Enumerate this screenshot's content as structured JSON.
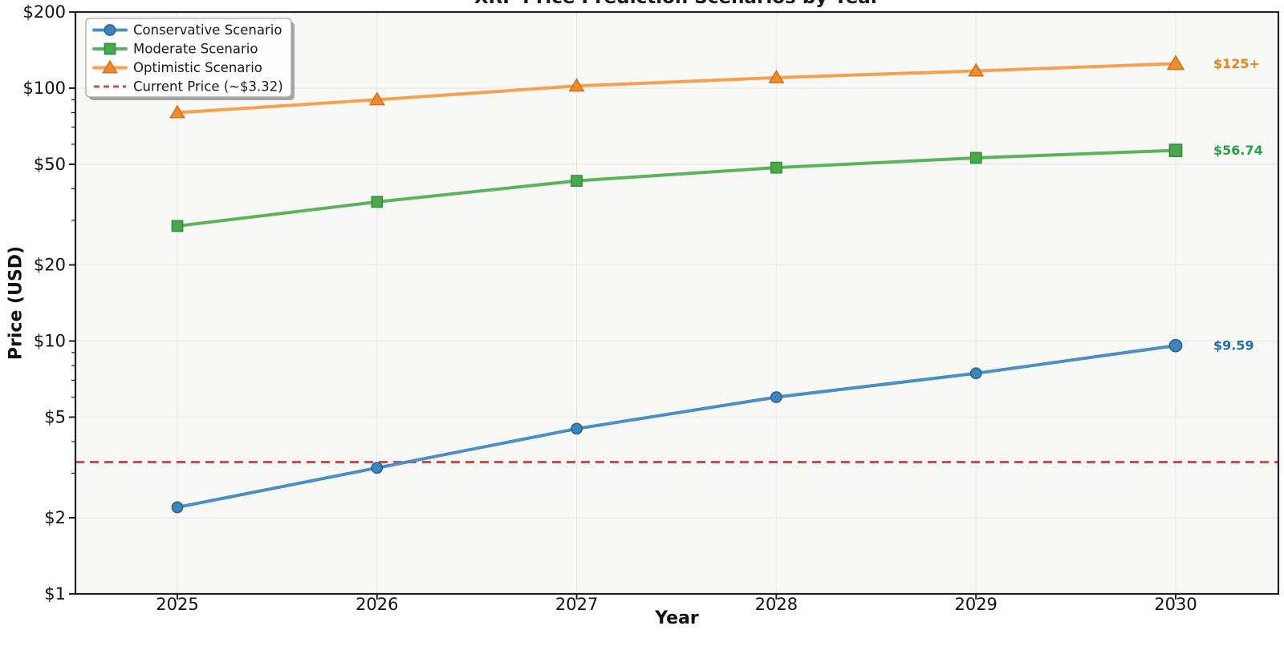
{
  "chart_data": {
    "type": "line",
    "title": "XRP Price Prediction Scenarios by Year",
    "xlabel": "Year",
    "ylabel": "Price (USD)",
    "yscale": "log",
    "ylim": [
      1,
      200
    ],
    "grid": true,
    "legend_position": "upper left",
    "x": [
      2025,
      2026,
      2027,
      2028,
      2029,
      2030
    ],
    "x_labels": [
      "2025",
      "2026",
      "2027",
      "2028",
      "2029",
      "2030"
    ],
    "y_ticks": [
      {
        "v": 1,
        "label": "$1"
      },
      {
        "v": 2,
        "label": "$2"
      },
      {
        "v": 5,
        "label": "$5"
      },
      {
        "v": 10,
        "label": "$10"
      },
      {
        "v": 20,
        "label": "$20"
      },
      {
        "v": 50,
        "label": "$50"
      },
      {
        "v": 100,
        "label": "$100"
      },
      {
        "v": 200,
        "label": "$200"
      }
    ],
    "y_minor_ticks": [
      3,
      4,
      6,
      7,
      8,
      9,
      30,
      40,
      60,
      70,
      80,
      90
    ],
    "series": [
      {
        "name": "Conservative Scenario",
        "marker": "circle",
        "color": "#4a90c6",
        "marker_fill": "#3d85bb",
        "marker_edge": "#2a628f",
        "values": [
          2.2,
          3.15,
          4.5,
          6.0,
          7.45,
          9.59
        ],
        "end_label": "$9.59",
        "end_label_color": "#1f6fa8"
      },
      {
        "name": "Moderate Scenario",
        "marker": "square",
        "color": "#5ab55a",
        "marker_fill": "#49a84d",
        "marker_edge": "#36903a",
        "values": [
          28.5,
          35.5,
          43.0,
          48.5,
          53.0,
          56.74
        ],
        "end_label": "$56.74",
        "end_label_color": "#2e9e41"
      },
      {
        "name": "Optimistic Scenario",
        "marker": "triangle",
        "color": "#f7a04e",
        "marker_fill": "#f08c2c",
        "marker_edge": "#d1731c",
        "values": [
          80,
          90,
          102,
          110,
          117,
          125
        ],
        "end_label": "$125+",
        "end_label_color": "#e8821c"
      }
    ],
    "reference_line": {
      "label": "Current Price (~$3.32)",
      "value": 3.32,
      "color": "#c5514d",
      "style": "dashed"
    },
    "style": {
      "plot_bg": "#f8f8f7",
      "grid_color": "#e9e9e9",
      "spine_color": "#222222",
      "tick_color": "#222222",
      "tick_label_color": "#111111",
      "legend_bg": "#fdfdfd",
      "legend_border": "#a8a8a8",
      "legend_text_color": "#1a1a1a"
    }
  }
}
